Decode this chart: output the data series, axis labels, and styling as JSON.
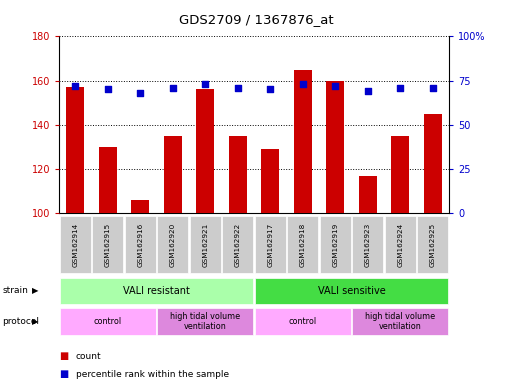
{
  "title": "GDS2709 / 1367876_at",
  "samples": [
    "GSM162914",
    "GSM162915",
    "GSM162916",
    "GSM162920",
    "GSM162921",
    "GSM162922",
    "GSM162917",
    "GSM162918",
    "GSM162919",
    "GSM162923",
    "GSM162924",
    "GSM162925"
  ],
  "counts": [
    157,
    130,
    106,
    135,
    156,
    135,
    129,
    165,
    160,
    117,
    135,
    145
  ],
  "percentile_ranks": [
    72,
    70,
    68,
    71,
    73,
    71,
    70,
    73,
    72,
    69,
    71,
    71
  ],
  "bar_color": "#cc0000",
  "dot_color": "#0000cc",
  "ymin": 100,
  "ymax": 180,
  "yticks": [
    100,
    120,
    140,
    160,
    180
  ],
  "y2min": 0,
  "y2max": 100,
  "y2ticks": [
    0,
    25,
    50,
    75,
    100
  ],
  "y2ticklabels": [
    "0",
    "25",
    "50",
    "75",
    "100%"
  ],
  "strain_groups": [
    {
      "label": "VALI resistant",
      "start": 0,
      "end": 6,
      "color": "#aaffaa"
    },
    {
      "label": "VALI sensitive",
      "start": 6,
      "end": 12,
      "color": "#44dd44"
    }
  ],
  "protocol_groups": [
    {
      "label": "control",
      "start": 0,
      "end": 3,
      "color": "#ffaaff"
    },
    {
      "label": "high tidal volume\nventilation",
      "start": 3,
      "end": 6,
      "color": "#dd88dd"
    },
    {
      "label": "control",
      "start": 6,
      "end": 9,
      "color": "#ffaaff"
    },
    {
      "label": "high tidal volume\nventilation",
      "start": 9,
      "end": 12,
      "color": "#dd88dd"
    }
  ],
  "legend_count_color": "#cc0000",
  "legend_dot_color": "#0000cc",
  "tick_label_color_left": "#cc0000",
  "tick_label_color_right": "#0000cc",
  "bar_width": 0.55,
  "sample_box_color": "#cccccc",
  "fig_bg": "#ffffff"
}
